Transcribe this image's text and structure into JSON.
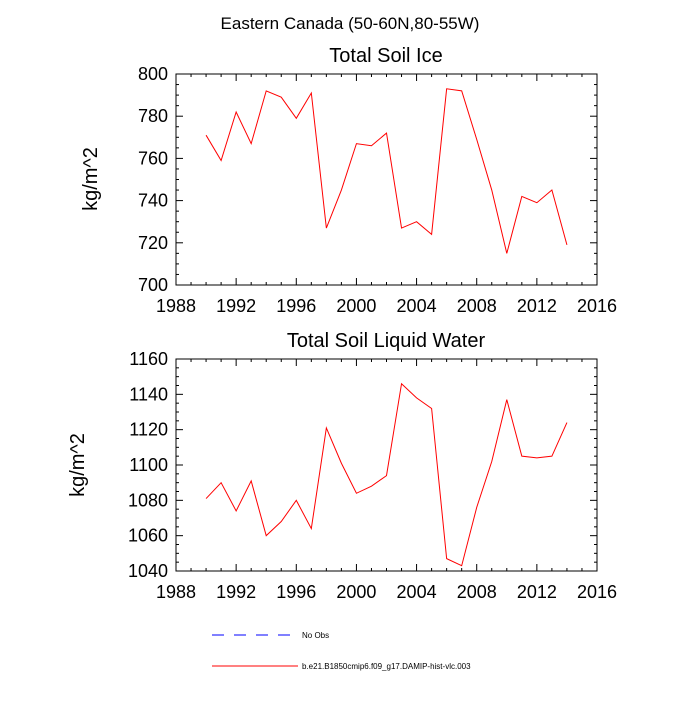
{
  "suptitle": "Eastern Canada (50-60N,80-55W)",
  "colors": {
    "model": "#ff0000",
    "obs": "#0000ff",
    "axis": "#000000"
  },
  "legend": [
    {
      "label": "No Obs",
      "style": "dashed",
      "color": "#0000ff"
    },
    {
      "label": "b.e21.B1850cmip6.f09_g17.DAMIP-hist-vlc.003",
      "style": "solid",
      "color": "#ff0000"
    }
  ],
  "chart_data": [
    {
      "type": "line",
      "title": "Total Soil Ice",
      "xlabel": "",
      "ylabel": "kg/m^2",
      "xlim": [
        1988,
        2016
      ],
      "ylim": [
        700,
        800
      ],
      "xticks": [
        1988,
        1992,
        1996,
        2000,
        2004,
        2008,
        2012,
        2016
      ],
      "yticks": [
        700,
        720,
        740,
        760,
        780,
        800
      ],
      "series": [
        {
          "name": "b.e21.B1850cmip6.f09_g17.DAMIP-hist-vlc.003",
          "x": [
            1990,
            1991,
            1992,
            1993,
            1994,
            1995,
            1996,
            1997,
            1998,
            1999,
            2000,
            2001,
            2002,
            2003,
            2004,
            2005,
            2006,
            2007,
            2008,
            2009,
            2010,
            2011,
            2012,
            2013,
            2014
          ],
          "values": [
            771,
            759,
            782,
            767,
            792,
            789,
            779,
            791,
            727,
            745,
            767,
            766,
            772,
            727,
            730,
            724,
            793,
            792,
            769,
            745,
            715,
            742,
            739,
            745,
            719
          ]
        }
      ]
    },
    {
      "type": "line",
      "title": "Total Soil Liquid Water",
      "xlabel": "",
      "ylabel": "kg/m^2",
      "xlim": [
        1988,
        2016
      ],
      "ylim": [
        1040,
        1160
      ],
      "xticks": [
        1988,
        1992,
        1996,
        2000,
        2004,
        2008,
        2012,
        2016
      ],
      "yticks": [
        1040,
        1060,
        1080,
        1100,
        1120,
        1140,
        1160
      ],
      "series": [
        {
          "name": "b.e21.B1850cmip6.f09_g17.DAMIP-hist-vlc.003",
          "x": [
            1990,
            1991,
            1992,
            1993,
            1994,
            1995,
            1996,
            1997,
            1998,
            1999,
            2000,
            2001,
            2002,
            2003,
            2004,
            2005,
            2006,
            2007,
            2008,
            2009,
            2010,
            2011,
            2012,
            2013,
            2014
          ],
          "values": [
            1081,
            1090,
            1074,
            1091,
            1060,
            1068,
            1080,
            1064,
            1121,
            1101,
            1084,
            1088,
            1094,
            1146,
            1138,
            1132,
            1047,
            1043,
            1076,
            1102,
            1137,
            1105,
            1104,
            1105,
            1124
          ]
        }
      ]
    }
  ]
}
